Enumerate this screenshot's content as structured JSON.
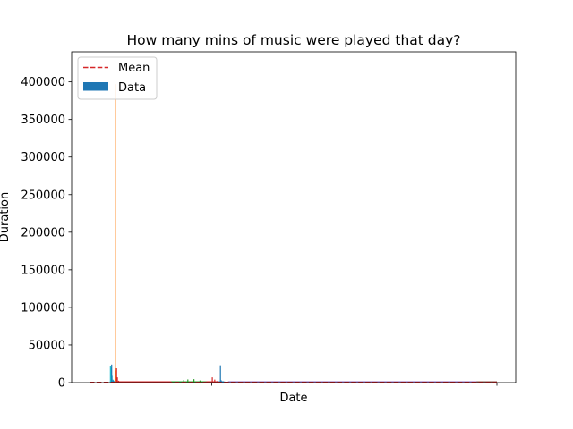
{
  "chart_data": {
    "type": "bar",
    "title": "How many mins of music were played that day?",
    "xlabel": "Date",
    "ylabel": "Duration",
    "ylim": [
      0,
      440000
    ],
    "yticks": [
      0,
      50000,
      100000,
      150000,
      200000,
      250000,
      300000,
      350000,
      400000
    ],
    "ytick_labels": [
      "0",
      "50000",
      "100000",
      "150000",
      "200000",
      "250000",
      "300000",
      "350000",
      "400000"
    ],
    "xlim": [
      0,
      1000
    ],
    "xticks": [
      300,
      1000
    ],
    "legend": {
      "placement": "upper left",
      "entries": [
        {
          "label": "Mean",
          "style": "dashed-line",
          "color": "#d62728"
        },
        {
          "label": "Data",
          "style": "patch",
          "color": "#1f77b4"
        }
      ]
    },
    "mean_value": 250,
    "series": [
      {
        "color": "#17becf",
        "points": [
          [
            50,
            22000
          ],
          [
            52,
            20000
          ],
          [
            54,
            9000
          ],
          [
            56,
            4000
          ],
          [
            58,
            2500
          ],
          [
            60,
            1500
          ]
        ]
      },
      {
        "color": "#1f77b4",
        "points": [
          [
            53,
            24000
          ],
          [
            57,
            3000
          ],
          [
            320,
            23000
          ],
          [
            322,
            3000
          ],
          [
            330,
            1500
          ]
        ]
      },
      {
        "color": "#ff7f0e",
        "points": [
          [
            62,
            397000
          ],
          [
            64,
            16000
          ],
          [
            66,
            4000
          ],
          [
            68,
            2000
          ],
          [
            72,
            1500
          ],
          [
            80,
            1200
          ],
          [
            100,
            1000
          ],
          [
            140,
            800
          ]
        ]
      },
      {
        "color": "#d62728",
        "points": [
          [
            65,
            19000
          ],
          [
            67,
            7000
          ],
          [
            70,
            2500
          ],
          [
            300,
            7000
          ],
          [
            306,
            4000
          ],
          [
            312,
            2000
          ]
        ]
      },
      {
        "color": "#2ca02c",
        "points": [
          [
            200,
            800
          ],
          [
            210,
            900
          ],
          [
            230,
            3500
          ],
          [
            240,
            4200
          ],
          [
            255,
            4600
          ],
          [
            270,
            2800
          ],
          [
            285,
            1500
          ]
        ]
      },
      {
        "color": "#8c564b",
        "points": [
          [
            400,
            1500
          ],
          [
            420,
            600
          ],
          [
            500,
            400
          ],
          [
            600,
            500
          ],
          [
            700,
            400
          ],
          [
            800,
            600
          ],
          [
            900,
            500
          ],
          [
            980,
            700
          ],
          [
            1000,
            400
          ]
        ]
      },
      {
        "color": "#9467bd",
        "points": [
          [
            340,
            800
          ],
          [
            360,
            400
          ],
          [
            450,
            300
          ],
          [
            550,
            350
          ],
          [
            650,
            300
          ],
          [
            750,
            400
          ],
          [
            850,
            350
          ],
          [
            950,
            300
          ]
        ]
      }
    ]
  }
}
